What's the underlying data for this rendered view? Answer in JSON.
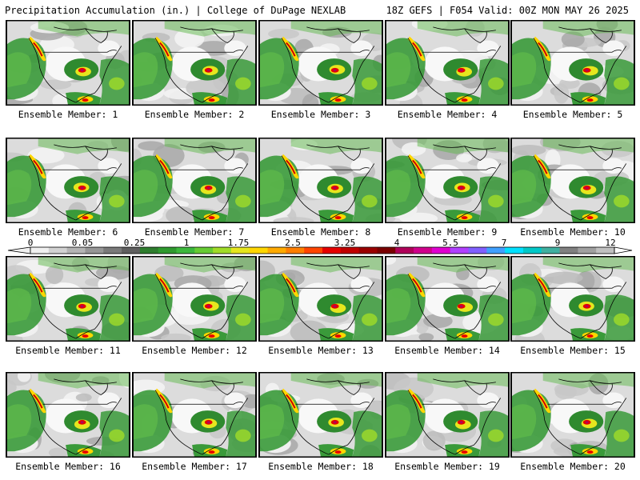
{
  "header": {
    "left_title": "Precipitation Accumulation (in.) | College of DuPage NEXLAB",
    "right_title": "18Z GEFS | F054 Valid: 00Z MON MAY 26 2025"
  },
  "panels": [
    {
      "caption": "Ensemble Member: 1"
    },
    {
      "caption": "Ensemble Member: 2"
    },
    {
      "caption": "Ensemble Member: 3"
    },
    {
      "caption": "Ensemble Member: 4"
    },
    {
      "caption": "Ensemble Member: 5"
    },
    {
      "caption": "Ensemble Member: 6"
    },
    {
      "caption": "Ensemble Member: 7"
    },
    {
      "caption": "Ensemble Member: 8"
    },
    {
      "caption": "Ensemble Member: 9"
    },
    {
      "caption": "Ensemble Member: 10"
    },
    {
      "caption": "Ensemble Member: 11"
    },
    {
      "caption": "Ensemble Member: 12"
    },
    {
      "caption": "Ensemble Member: 13"
    },
    {
      "caption": "Ensemble Member: 14"
    },
    {
      "caption": "Ensemble Member: 15"
    },
    {
      "caption": "Ensemble Member: 16"
    },
    {
      "caption": "Ensemble Member: 17"
    },
    {
      "caption": "Ensemble Member: 18"
    },
    {
      "caption": "Ensemble Member: 19"
    },
    {
      "caption": "Ensemble Member: 20"
    }
  ],
  "colorbar": {
    "labels": [
      "0",
      "0.05",
      "0.25",
      "1",
      "1.75",
      "2.5",
      "3.25",
      "4",
      "5.5",
      "7",
      "9",
      "12"
    ],
    "colors": [
      "#f0f0f0",
      "#d2d2d2",
      "#b4b4b4",
      "#969696",
      "#7a7a7a",
      "#5f5f5f",
      "#2f7d2f",
      "#2f9a2f",
      "#3cb83c",
      "#66cc33",
      "#a0dc28",
      "#e6e61e",
      "#ffd700",
      "#ffaa00",
      "#ff7f00",
      "#ff4500",
      "#e60000",
      "#c00000",
      "#9a0000",
      "#7a0000",
      "#b0005a",
      "#d0008c",
      "#e000d0",
      "#b040ff",
      "#8060ff",
      "#40a0ff",
      "#00e0ff",
      "#00c8c8",
      "#40b0a0",
      "#808080",
      "#a0a0a0",
      "#c0c0c0"
    ]
  }
}
